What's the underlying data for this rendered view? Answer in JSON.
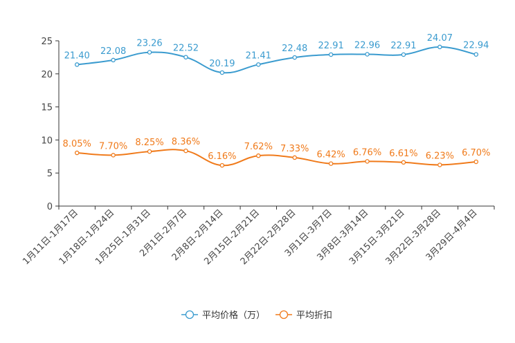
{
  "chart_data": {
    "type": "line",
    "title": "",
    "xlabel": "",
    "ylabel": "",
    "ylim": [
      0,
      25
    ],
    "yticks": [
      0,
      5,
      10,
      15,
      20,
      25
    ],
    "grid": false,
    "legend_position": "bottom",
    "categories": [
      "1月11日-1月17日",
      "1月18日-1月24日",
      "1月25日-1月31日",
      "2月1日-2月7日",
      "2月8日-2月14日",
      "2月15日-2月21日",
      "2月22日-2月28日",
      "3月1日-3月7日",
      "3月8日-3月14日",
      "3月15日-3月21日",
      "3月22日-3月28日",
      "3月29日-4月4日"
    ],
    "series": [
      {
        "name": "平均价格（万）",
        "color": "#3a9bcf",
        "values": [
          21.4,
          22.08,
          23.26,
          22.52,
          20.19,
          21.41,
          22.48,
          22.91,
          22.96,
          22.91,
          24.07,
          22.94
        ],
        "labels": [
          "21.40",
          "22.08",
          "23.26",
          "22.52",
          "20.19",
          "21.41",
          "22.48",
          "22.91",
          "22.96",
          "22.91",
          "24.07",
          "22.94"
        ]
      },
      {
        "name": "平均折扣",
        "color": "#f07a1a",
        "values": [
          8.05,
          7.7,
          8.25,
          8.36,
          6.16,
          7.62,
          7.33,
          6.42,
          6.76,
          6.61,
          6.23,
          6.7
        ],
        "labels": [
          "8.05%",
          "7.70%",
          "8.25%",
          "8.36%",
          "6.16%",
          "7.62%",
          "7.33%",
          "6.42%",
          "6.76%",
          "6.61%",
          "6.23%",
          "6.70%"
        ]
      }
    ]
  }
}
